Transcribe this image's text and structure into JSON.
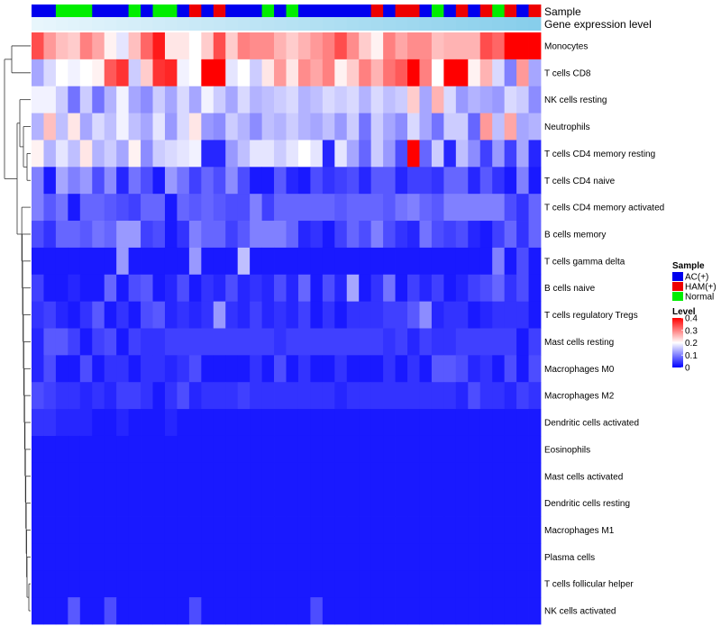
{
  "chart_data": {
    "type": "heatmap",
    "annotation_labels": [
      "Sample",
      "Gene expression level"
    ],
    "samples": [
      "AC(+)",
      "AC(+)",
      "Normal",
      "Normal",
      "Normal",
      "AC(+)",
      "AC(+)",
      "AC(+)",
      "Normal",
      "AC(+)",
      "Normal",
      "Normal",
      "AC(+)",
      "HAM(+)",
      "AC(+)",
      "HAM(+)",
      "AC(+)",
      "AC(+)",
      "AC(+)",
      "Normal",
      "AC(+)",
      "Normal",
      "AC(+)",
      "AC(+)",
      "AC(+)",
      "AC(+)",
      "AC(+)",
      "AC(+)",
      "HAM(+)",
      "AC(+)",
      "HAM(+)",
      "HAM(+)",
      "AC(+)",
      "Normal",
      "AC(+)",
      "HAM(+)",
      "AC(+)",
      "HAM(+)",
      "Normal",
      "HAM(+)",
      "AC(+)",
      "HAM(+)"
    ],
    "rows": [
      "Monocytes",
      "T cells CD8",
      "NK cells resting",
      "Neutrophils",
      "T cells CD4 memory resting",
      "T cells CD4 naive",
      "T cells CD4 memory activated",
      "B cells memory",
      "T cells gamma delta",
      "B cells naive",
      "T cells regulatory  Tregs",
      "Mast cells resting",
      "Macrophages M0",
      "Macrophages M2",
      "Dendritic cells activated",
      "Eosinophils",
      "Mast cells activated",
      "Dendritic cells resting",
      "Macrophages M1",
      "Plasma cells",
      "T cells follicular helper",
      "NK cells activated"
    ],
    "values": [
      [
        0.34,
        0.28,
        0.25,
        0.24,
        0.3,
        0.27,
        0.21,
        0.18,
        0.25,
        0.32,
        0.38,
        0.22,
        0.22,
        0.2,
        0.24,
        0.34,
        0.24,
        0.3,
        0.29,
        0.29,
        0.26,
        0.24,
        0.26,
        0.28,
        0.3,
        0.34,
        0.29,
        0.24,
        0.21,
        0.3,
        0.27,
        0.29,
        0.29,
        0.25,
        0.26,
        0.26,
        0.26,
        0.34,
        0.32,
        0.4,
        0.4,
        0.4
      ],
      [
        0.13,
        0.17,
        0.2,
        0.19,
        0.2,
        0.21,
        0.33,
        0.36,
        0.16,
        0.24,
        0.36,
        0.37,
        0.19,
        0.2,
        0.4,
        0.4,
        0.18,
        0.2,
        0.16,
        0.22,
        0.28,
        0.22,
        0.29,
        0.27,
        0.3,
        0.21,
        0.24,
        0.3,
        0.26,
        0.31,
        0.33,
        0.4,
        0.3,
        0.2,
        0.4,
        0.4,
        0.21,
        0.26,
        0.17,
        0.1,
        0.28,
        0.13
      ],
      [
        0.19,
        0.19,
        0.16,
        0.09,
        0.16,
        0.09,
        0.14,
        0.19,
        0.13,
        0.11,
        0.16,
        0.13,
        0.17,
        0.13,
        0.19,
        0.16,
        0.13,
        0.17,
        0.14,
        0.15,
        0.16,
        0.17,
        0.14,
        0.15,
        0.17,
        0.16,
        0.17,
        0.14,
        0.17,
        0.15,
        0.16,
        0.24,
        0.13,
        0.26,
        0.17,
        0.12,
        0.14,
        0.13,
        0.12,
        0.17,
        0.16,
        0.11
      ],
      [
        0.14,
        0.25,
        0.15,
        0.22,
        0.13,
        0.17,
        0.15,
        0.19,
        0.15,
        0.13,
        0.18,
        0.12,
        0.17,
        0.22,
        0.12,
        0.11,
        0.16,
        0.14,
        0.11,
        0.15,
        0.14,
        0.16,
        0.14,
        0.13,
        0.15,
        0.12,
        0.16,
        0.09,
        0.16,
        0.13,
        0.11,
        0.17,
        0.13,
        0.09,
        0.16,
        0.16,
        0.08,
        0.28,
        0.15,
        0.27,
        0.13,
        0.14
      ],
      [
        0.21,
        0.14,
        0.18,
        0.15,
        0.22,
        0.14,
        0.16,
        0.13,
        0.21,
        0.11,
        0.16,
        0.17,
        0.18,
        0.19,
        0.03,
        0.03,
        0.12,
        0.15,
        0.18,
        0.18,
        0.16,
        0.18,
        0.2,
        0.18,
        0.03,
        0.18,
        0.13,
        0.08,
        0.16,
        0.12,
        0.06,
        0.4,
        0.08,
        0.16,
        0.03,
        0.15,
        0.11,
        0.05,
        0.12,
        0.05,
        0.13,
        0.03
      ],
      [
        0.1,
        0.02,
        0.13,
        0.1,
        0.12,
        0.06,
        0.11,
        0.03,
        0.09,
        0.06,
        0.02,
        0.12,
        0.09,
        0.05,
        0.08,
        0.06,
        0.11,
        0.06,
        0.02,
        0.02,
        0.07,
        0.03,
        0.02,
        0.06,
        0.04,
        0.05,
        0.06,
        0.03,
        0.07,
        0.07,
        0.03,
        0.05,
        0.05,
        0.04,
        0.08,
        0.08,
        0.03,
        0.07,
        0.04,
        0.02,
        0.1,
        0.02
      ],
      [
        0.1,
        0.07,
        0.09,
        0.02,
        0.08,
        0.08,
        0.07,
        0.06,
        0.05,
        0.08,
        0.08,
        0.02,
        0.08,
        0.07,
        0.08,
        0.07,
        0.06,
        0.06,
        0.1,
        0.05,
        0.08,
        0.08,
        0.08,
        0.08,
        0.08,
        0.07,
        0.08,
        0.08,
        0.08,
        0.07,
        0.09,
        0.1,
        0.08,
        0.07,
        0.1,
        0.1,
        0.1,
        0.1,
        0.1,
        0.06,
        0.04,
        0.08
      ],
      [
        0.06,
        0.04,
        0.08,
        0.08,
        0.07,
        0.09,
        0.08,
        0.12,
        0.12,
        0.05,
        0.06,
        0.02,
        0.04,
        0.1,
        0.08,
        0.08,
        0.05,
        0.07,
        0.1,
        0.1,
        0.1,
        0.08,
        0.03,
        0.04,
        0.02,
        0.05,
        0.08,
        0.06,
        0.1,
        0.06,
        0.04,
        0.03,
        0.09,
        0.06,
        0.05,
        0.06,
        0.03,
        0.02,
        0.05,
        0.08,
        0.04,
        0.08
      ],
      [
        0.02,
        0.02,
        0.02,
        0.02,
        0.02,
        0.02,
        0.02,
        0.12,
        0.02,
        0.02,
        0.02,
        0.02,
        0.02,
        0.12,
        0.02,
        0.02,
        0.02,
        0.15,
        0.02,
        0.02,
        0.02,
        0.02,
        0.02,
        0.02,
        0.02,
        0.02,
        0.02,
        0.02,
        0.02,
        0.02,
        0.02,
        0.02,
        0.02,
        0.02,
        0.02,
        0.02,
        0.02,
        0.02,
        0.1,
        0.02,
        0.06,
        0.02
      ],
      [
        0.05,
        0.02,
        0.02,
        0.03,
        0.02,
        0.02,
        0.08,
        0.02,
        0.06,
        0.07,
        0.02,
        0.03,
        0.06,
        0.02,
        0.04,
        0.03,
        0.06,
        0.03,
        0.04,
        0.03,
        0.06,
        0.03,
        0.08,
        0.02,
        0.06,
        0.03,
        0.13,
        0.02,
        0.04,
        0.09,
        0.02,
        0.05,
        0.03,
        0.05,
        0.02,
        0.03,
        0.05,
        0.06,
        0.08,
        0.04,
        0.06,
        0.02
      ],
      [
        0.04,
        0.05,
        0.03,
        0.02,
        0.04,
        0.07,
        0.02,
        0.04,
        0.02,
        0.06,
        0.07,
        0.03,
        0.04,
        0.03,
        0.04,
        0.12,
        0.04,
        0.03,
        0.05,
        0.03,
        0.04,
        0.03,
        0.05,
        0.02,
        0.04,
        0.02,
        0.04,
        0.04,
        0.04,
        0.05,
        0.05,
        0.07,
        0.11,
        0.03,
        0.04,
        0.04,
        0.02,
        0.03,
        0.04,
        0.04,
        0.04,
        0.02
      ],
      [
        0.03,
        0.07,
        0.07,
        0.05,
        0.02,
        0.05,
        0.06,
        0.02,
        0.05,
        0.04,
        0.04,
        0.05,
        0.05,
        0.05,
        0.05,
        0.05,
        0.05,
        0.05,
        0.05,
        0.05,
        0.04,
        0.05,
        0.05,
        0.05,
        0.05,
        0.05,
        0.05,
        0.05,
        0.05,
        0.04,
        0.05,
        0.03,
        0.05,
        0.04,
        0.04,
        0.05,
        0.05,
        0.05,
        0.05,
        0.05,
        0.02,
        0.05
      ],
      [
        0.03,
        0.06,
        0.02,
        0.02,
        0.06,
        0.02,
        0.04,
        0.04,
        0.02,
        0.04,
        0.04,
        0.03,
        0.04,
        0.06,
        0.02,
        0.02,
        0.02,
        0.02,
        0.04,
        0.02,
        0.06,
        0.02,
        0.04,
        0.02,
        0.02,
        0.04,
        0.02,
        0.02,
        0.02,
        0.04,
        0.02,
        0.04,
        0.02,
        0.07,
        0.07,
        0.06,
        0.03,
        0.04,
        0.02,
        0.06,
        0.02,
        0.06
      ],
      [
        0.06,
        0.05,
        0.04,
        0.04,
        0.03,
        0.04,
        0.03,
        0.05,
        0.05,
        0.04,
        0.02,
        0.04,
        0.06,
        0.03,
        0.04,
        0.04,
        0.04,
        0.05,
        0.04,
        0.04,
        0.04,
        0.04,
        0.04,
        0.04,
        0.04,
        0.03,
        0.04,
        0.04,
        0.04,
        0.04,
        0.04,
        0.04,
        0.04,
        0.04,
        0.04,
        0.03,
        0.06,
        0.04,
        0.04,
        0.03,
        0.05,
        0.04
      ],
      [
        0.04,
        0.04,
        0.03,
        0.03,
        0.03,
        0.02,
        0.02,
        0.03,
        0.02,
        0.02,
        0.02,
        0.03,
        0.02,
        0.02,
        0.02,
        0.02,
        0.02,
        0.02,
        0.02,
        0.02,
        0.02,
        0.02,
        0.02,
        0.02,
        0.02,
        0.02,
        0.02,
        0.02,
        0.02,
        0.02,
        0.02,
        0.02,
        0.02,
        0.02,
        0.02,
        0.02,
        0.02,
        0.02,
        0.02,
        0.02,
        0.02,
        0.02
      ],
      [
        0.02,
        0.02,
        0.02,
        0.02,
        0.02,
        0.02,
        0.02,
        0.02,
        0.02,
        0.02,
        0.02,
        0.02,
        0.02,
        0.02,
        0.02,
        0.02,
        0.02,
        0.02,
        0.02,
        0.02,
        0.02,
        0.02,
        0.02,
        0.02,
        0.02,
        0.02,
        0.02,
        0.02,
        0.02,
        0.02,
        0.02,
        0.02,
        0.02,
        0.02,
        0.02,
        0.02,
        0.02,
        0.02,
        0.02,
        0.02,
        0.02,
        0.02
      ],
      [
        0.02,
        0.02,
        0.02,
        0.02,
        0.02,
        0.02,
        0.02,
        0.02,
        0.02,
        0.02,
        0.02,
        0.02,
        0.02,
        0.02,
        0.02,
        0.02,
        0.02,
        0.02,
        0.02,
        0.02,
        0.02,
        0.02,
        0.02,
        0.02,
        0.02,
        0.02,
        0.02,
        0.02,
        0.02,
        0.02,
        0.02,
        0.02,
        0.02,
        0.02,
        0.02,
        0.02,
        0.02,
        0.02,
        0.02,
        0.02,
        0.02,
        0.02
      ],
      [
        0.02,
        0.02,
        0.02,
        0.02,
        0.02,
        0.02,
        0.02,
        0.02,
        0.02,
        0.02,
        0.02,
        0.02,
        0.02,
        0.02,
        0.02,
        0.02,
        0.02,
        0.02,
        0.02,
        0.02,
        0.02,
        0.02,
        0.02,
        0.02,
        0.02,
        0.02,
        0.02,
        0.02,
        0.02,
        0.02,
        0.02,
        0.02,
        0.02,
        0.02,
        0.02,
        0.02,
        0.02,
        0.02,
        0.02,
        0.02,
        0.02,
        0.02
      ],
      [
        0.02,
        0.02,
        0.02,
        0.02,
        0.02,
        0.02,
        0.02,
        0.02,
        0.02,
        0.02,
        0.02,
        0.02,
        0.02,
        0.02,
        0.02,
        0.02,
        0.02,
        0.02,
        0.02,
        0.02,
        0.02,
        0.02,
        0.02,
        0.02,
        0.02,
        0.02,
        0.02,
        0.02,
        0.02,
        0.02,
        0.02,
        0.02,
        0.02,
        0.02,
        0.02,
        0.02,
        0.02,
        0.02,
        0.02,
        0.02,
        0.02,
        0.02
      ],
      [
        0.02,
        0.02,
        0.02,
        0.02,
        0.02,
        0.02,
        0.02,
        0.02,
        0.02,
        0.02,
        0.02,
        0.02,
        0.02,
        0.02,
        0.02,
        0.02,
        0.02,
        0.02,
        0.02,
        0.02,
        0.02,
        0.02,
        0.02,
        0.02,
        0.02,
        0.02,
        0.02,
        0.02,
        0.02,
        0.02,
        0.02,
        0.02,
        0.02,
        0.02,
        0.02,
        0.02,
        0.02,
        0.02,
        0.02,
        0.02,
        0.02,
        0.02
      ],
      [
        0.02,
        0.02,
        0.02,
        0.02,
        0.02,
        0.02,
        0.02,
        0.02,
        0.02,
        0.02,
        0.02,
        0.02,
        0.02,
        0.02,
        0.02,
        0.02,
        0.02,
        0.02,
        0.02,
        0.02,
        0.02,
        0.02,
        0.02,
        0.02,
        0.02,
        0.02,
        0.02,
        0.02,
        0.02,
        0.02,
        0.02,
        0.02,
        0.02,
        0.02,
        0.02,
        0.02,
        0.02,
        0.02,
        0.02,
        0.02,
        0.02,
        0.02
      ],
      [
        0.02,
        0.02,
        0.02,
        0.07,
        0.02,
        0.02,
        0.06,
        0.02,
        0.02,
        0.02,
        0.02,
        0.02,
        0.02,
        0.06,
        0.02,
        0.02,
        0.02,
        0.02,
        0.02,
        0.02,
        0.02,
        0.02,
        0.02,
        0.06,
        0.02,
        0.02,
        0.02,
        0.02,
        0.02,
        0.02,
        0.02,
        0.02,
        0.02,
        0.02,
        0.02,
        0.02,
        0.02,
        0.02,
        0.02,
        0.02,
        0.02,
        0.02
      ]
    ],
    "legend_sample": {
      "title": "Sample",
      "items": [
        {
          "label": "AC(+)",
          "color": "#0000ee"
        },
        {
          "label": "HAM(+)",
          "color": "#ee0000"
        },
        {
          "label": "Normal",
          "color": "#00ee00"
        }
      ]
    },
    "legend_level": {
      "title": "Level",
      "ticks": [
        "0.4",
        "0.3",
        "0.2",
        "0.1",
        "0"
      ],
      "range": [
        0,
        0.4
      ],
      "colors": [
        "#0000ff",
        "#ffffff",
        "#ff0000"
      ]
    },
    "expression_bar_color": "#87ceeb"
  }
}
